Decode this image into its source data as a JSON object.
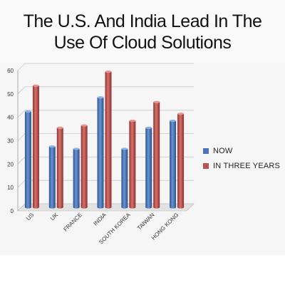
{
  "chart_data": {
    "type": "bar",
    "title": "The U.S. And India Lead In The Use Of Cloud Solutions",
    "categories": [
      "US",
      "UK",
      "FRANCE",
      "INDIA",
      "SOUTH KOREA",
      "TAIWAN",
      "HONG KONG"
    ],
    "series": [
      {
        "name": "NOW",
        "color": "#4a74b9",
        "values": [
          41,
          26,
          25,
          47,
          25,
          34,
          37
        ]
      },
      {
        "name": "IN THREE YEARS",
        "color": "#c0504d",
        "values": [
          52,
          34,
          35,
          58,
          37,
          45,
          40
        ]
      }
    ],
    "ylim": [
      0,
      60
    ],
    "yticks": [
      "0",
      "10",
      "20",
      "30",
      "40",
      "50",
      "60"
    ],
    "grid": true,
    "legend_position": "right",
    "style": "3d-cylinder-bars"
  }
}
